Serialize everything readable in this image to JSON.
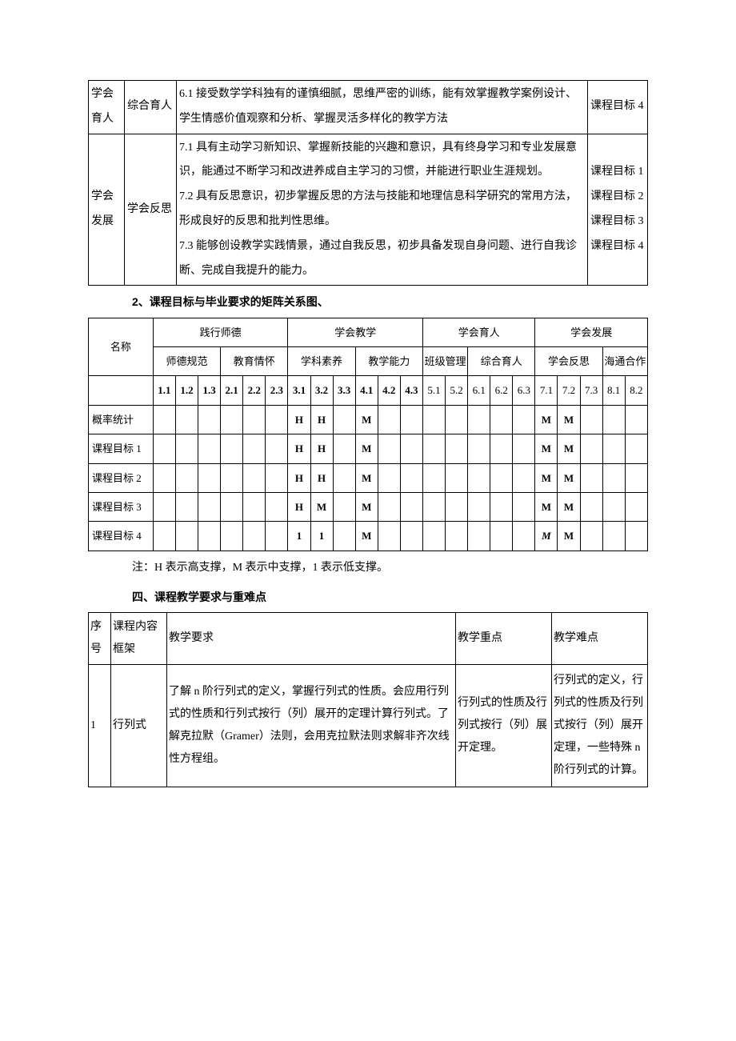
{
  "table1": {
    "rows": [
      {
        "cat": "学会\n育人",
        "sub": "综合育人",
        "content": "6.1 接受数学学科独有的谨慎细腻，思维严密的训练，能有效掌握教学案例设计、学生情感价值观察和分析、掌握灵活多样化的教学方法",
        "obj": "课程目标 4"
      },
      {
        "cat": "学会\n发展",
        "sub": "学会反思",
        "content": "7.1 具有主动学习新知识、掌握新技能的兴趣和意识，具有终身学习和专业发展意识，能通过不断学习和改进养成自主学习的习惯，并能进行职业生涯规划。\n7.2 具有反思意识，初步掌握反思的方法与技能和地理信息科学研究的常用方法，形成良好的反思和批判性思维。\n7.3 能够创设教学实践情景，通过自我反思，初步具备发现自身问题、进行自我诊断、完成自我提升的能力。",
        "obj": "课程目标 1\n课程目标 2\n课程目标 3\n课程目标 4"
      }
    ]
  },
  "heading2": "2、课程目标与毕业要求的矩阵关系图、",
  "table2": {
    "cat_headers": [
      "名称",
      "践行师德",
      "学会教学",
      "学会育人",
      "学会发展"
    ],
    "sub_headers": [
      "师德规范",
      "教育情怀",
      "学科素养",
      "教学能力",
      "班级管理",
      "综合育人",
      "学会反思",
      "海通合作"
    ],
    "num_headers": [
      "1.1",
      "1.2",
      "1.3",
      "2.1",
      "2.2",
      "2.3",
      "3.1",
      "3.2",
      "3.3",
      "4.1",
      "4.2",
      "4.3",
      "5.1",
      "5.2",
      "6.1",
      "6.2",
      "6.3",
      "7.1",
      "7.2",
      "7.3",
      "8.1",
      "8.2"
    ],
    "row_labels": [
      "概率统计",
      "课程目标 1",
      "课程目标 2",
      "课程目标 3",
      "课程目标 4"
    ],
    "data": [
      [
        "",
        "",
        "",
        "",
        "",
        "",
        "H",
        "H",
        "",
        "M",
        "",
        "",
        "",
        "",
        "",
        "",
        "",
        "M",
        "M",
        "",
        "",
        ""
      ],
      [
        "",
        "",
        "",
        "",
        "",
        "",
        "H",
        "H",
        "",
        "M",
        "",
        "",
        "",
        "",
        "",
        "",
        "",
        "M",
        "M",
        "",
        "",
        ""
      ],
      [
        "",
        "",
        "",
        "",
        "",
        "",
        "H",
        "H",
        "",
        "M",
        "",
        "",
        "",
        "",
        "",
        "",
        "",
        "M",
        "M",
        "",
        "",
        ""
      ],
      [
        "",
        "",
        "",
        "",
        "",
        "",
        "H",
        "M",
        "",
        "M",
        "",
        "",
        "",
        "",
        "",
        "",
        "",
        "M",
        "M",
        "",
        "",
        ""
      ],
      [
        "",
        "",
        "",
        "",
        "",
        "",
        "1",
        "1",
        "",
        "M",
        "",
        "",
        "",
        "",
        "",
        "",
        "",
        "M",
        "M",
        "",
        "",
        ""
      ]
    ],
    "last_row_italic_col": 17
  },
  "note": "注：H 表示高支撑，M 表示中支撑，1 表示低支撑。",
  "heading4": "四、课程教学要求与重难点",
  "table3": {
    "headers": [
      "序号",
      "课程内容框架",
      "教学要求",
      "教学重点",
      "教学难点"
    ],
    "row": {
      "seq": "1",
      "frame": "行列式",
      "req": "了解 n 阶行列式的定义，掌握行列式的性质。会应用行列式的性质和行列式按行（列）展开的定理计算行列式。了解克拉默（Gramer）法则，会用克拉默法则求解非齐次线性方程组。",
      "focus": "行列式的性质及行列式按行（列）展开定理。",
      "diff": "行列式的定义，行列式的性质及行列式按行（列）展开定理，一些特殊 n 阶行列式的计算。"
    }
  }
}
